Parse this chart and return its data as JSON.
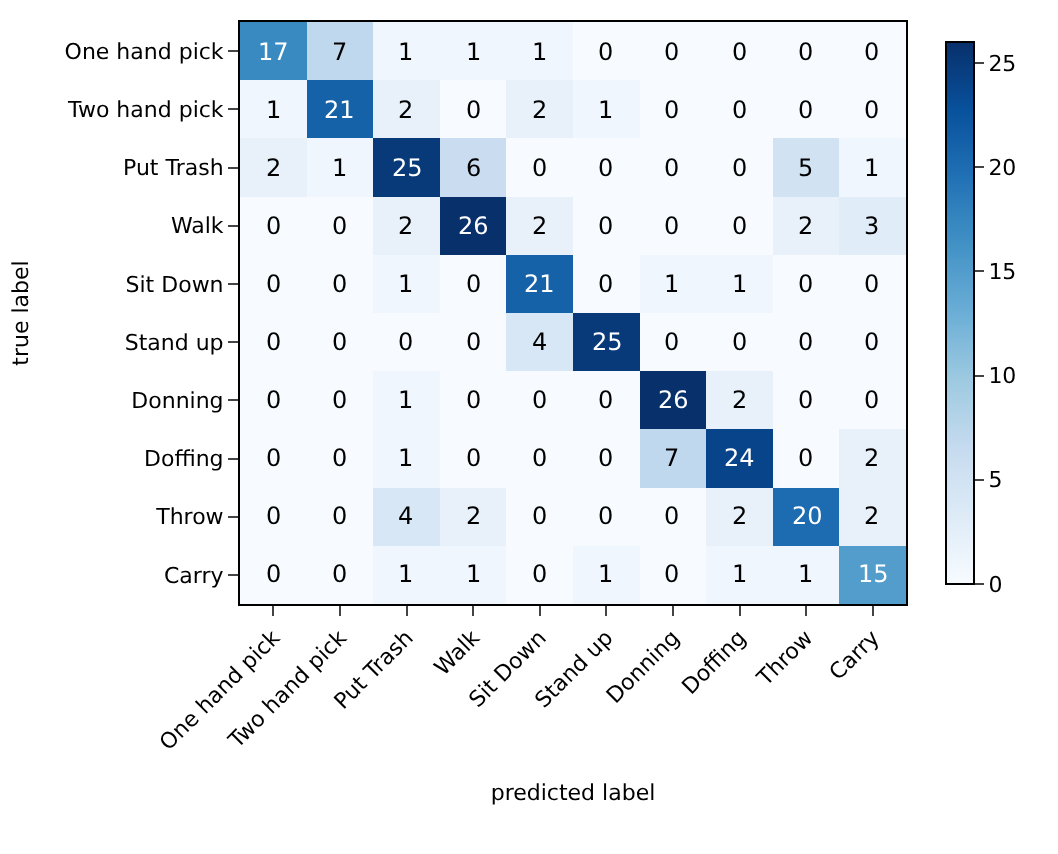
{
  "chart_data": {
    "type": "heatmap",
    "xlabel": "predicted label",
    "ylabel": "true label",
    "categories": [
      "One hand pick",
      "Two hand pick",
      "Put Trash",
      "Walk",
      "Sit Down",
      "Stand up",
      "Donning",
      "Doffing",
      "Throw",
      "Carry"
    ],
    "y_categories": [
      "One hand pick",
      "Two hand pick",
      "Put Trash",
      "Walk",
      "Sit Down",
      "Stand up",
      "Donning",
      "Doffing",
      "Throw",
      "Carry"
    ],
    "cells": [
      [
        17,
        7,
        1,
        1,
        1,
        0,
        0,
        0,
        0,
        0
      ],
      [
        1,
        21,
        2,
        0,
        2,
        1,
        0,
        0,
        0,
        0
      ],
      [
        2,
        1,
        25,
        6,
        0,
        0,
        0,
        0,
        5,
        1
      ],
      [
        0,
        0,
        2,
        26,
        2,
        0,
        0,
        0,
        2,
        3
      ],
      [
        0,
        0,
        1,
        0,
        21,
        0,
        1,
        1,
        0,
        0
      ],
      [
        0,
        0,
        0,
        0,
        4,
        25,
        0,
        0,
        0,
        0
      ],
      [
        0,
        0,
        1,
        0,
        0,
        0,
        26,
        2,
        0,
        0
      ],
      [
        0,
        0,
        1,
        0,
        0,
        0,
        7,
        24,
        0,
        2
      ],
      [
        0,
        0,
        4,
        2,
        0,
        0,
        0,
        2,
        20,
        2
      ],
      [
        0,
        0,
        1,
        1,
        0,
        1,
        0,
        1,
        1,
        15
      ]
    ],
    "clim": [
      0,
      26
    ],
    "cticks": [
      0,
      5,
      10,
      15,
      20,
      25
    ],
    "data_labels": true
  }
}
